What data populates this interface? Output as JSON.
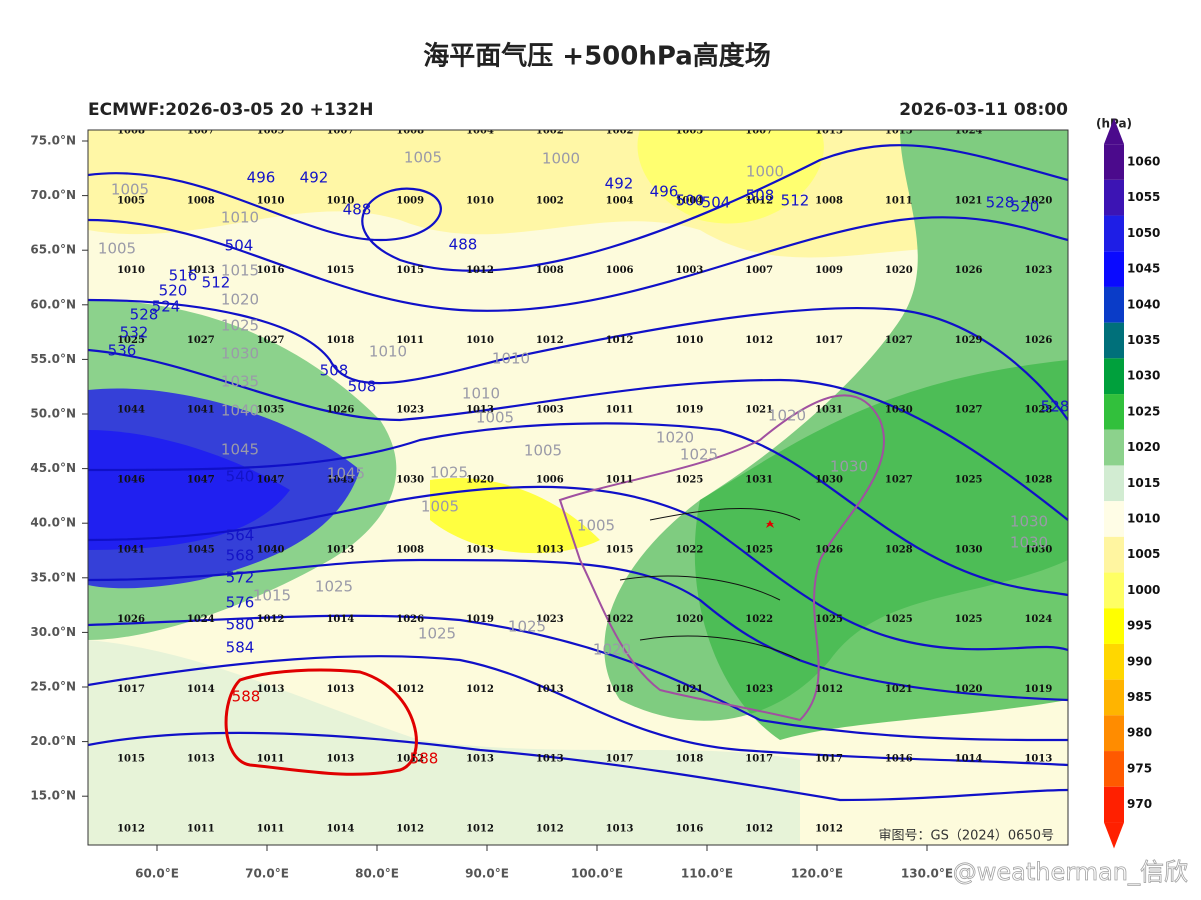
{
  "header": {
    "title": "海平面气压 +500hPa高度场",
    "left": "ECMWF:2026-03-05 20 +132H",
    "right": "2026-03-11 08:00"
  },
  "axes": {
    "lon_labels": [
      "60.0°E",
      "70.0°E",
      "80.0°E",
      "90.0°E",
      "100.0°E",
      "110.0°E",
      "120.0°E",
      "130.0°E"
    ],
    "lat_labels": [
      "75.0°N",
      "70.0°N",
      "65.0°N",
      "60.0°N",
      "55.0°N",
      "50.0°N",
      "45.0°N",
      "40.0°N",
      "35.0°N",
      "30.0°N",
      "25.0°N",
      "20.0°N",
      "15.0°N"
    ]
  },
  "colorbar": {
    "unit": "(hPa)",
    "labels": [
      "1060",
      "1055",
      "1050",
      "1045",
      "1040",
      "1035",
      "1030",
      "1025",
      "1020",
      "1015",
      "1010",
      "1005",
      "1000",
      "995",
      "990",
      "985",
      "980",
      "975",
      "970"
    ],
    "colors": [
      "#4b0a8c",
      "#3c14b4",
      "#1e1ee6",
      "#0a0aff",
      "#0a3cc8",
      "#00707a",
      "#00a03c",
      "#32c03c",
      "#8cd28c",
      "#d2ecd2",
      "#fffde6",
      "#fff5a0",
      "#ffff64",
      "#ffff00",
      "#ffd700",
      "#ffb400",
      "#ff8c00",
      "#ff5a00",
      "#ff2000"
    ]
  },
  "stations": {
    "rows": [
      [
        "1008",
        "1007",
        "1009",
        "1007",
        "1008",
        "1004",
        "1002",
        "1002",
        "1005",
        "1007",
        "1013",
        "1015",
        "1024"
      ],
      [
        "1005",
        "1008",
        "1010",
        "1010",
        "1009",
        "1010",
        "1002",
        "1004",
        "1004",
        "1012",
        "1008",
        "1011",
        "1021",
        "1020"
      ],
      [
        "1010",
        "1013",
        "1016",
        "1015",
        "1015",
        "1012",
        "1008",
        "1006",
        "1003",
        "1007",
        "1009",
        "1020",
        "1026",
        "1023"
      ],
      [
        "1025",
        "1027",
        "1027",
        "1018",
        "1011",
        "1010",
        "1012",
        "1012",
        "1010",
        "1012",
        "1017",
        "1027",
        "1029",
        "1026"
      ],
      [
        "1044",
        "1041",
        "1035",
        "1026",
        "1023",
        "1013",
        "1003",
        "1011",
        "1019",
        "1021",
        "1031",
        "1030",
        "1027",
        "1028"
      ],
      [
        "1046",
        "1047",
        "1047",
        "1045",
        "1030",
        "1020",
        "1006",
        "1011",
        "1025",
        "1031",
        "1030",
        "1027",
        "1025",
        "1028"
      ],
      [
        "1041",
        "1045",
        "1040",
        "1013",
        "1008",
        "1013",
        "1013",
        "1015",
        "1022",
        "1025",
        "1026",
        "1028",
        "1030",
        "1030"
      ],
      [
        "1026",
        "1024",
        "1012",
        "1014",
        "1026",
        "1019",
        "1023",
        "1022",
        "1020",
        "1022",
        "1025",
        "1025",
        "1025",
        "1024"
      ],
      [
        "1017",
        "1014",
        "1013",
        "1013",
        "1012",
        "1012",
        "1013",
        "1018",
        "1021",
        "1023",
        "1012",
        "1021",
        "1020",
        "1019"
      ],
      [
        "1015",
        "1013",
        "1011",
        "1013",
        "1012",
        "1013",
        "1013",
        "1017",
        "1018",
        "1017",
        "1017",
        "1016",
        "1014",
        "1013"
      ],
      [
        "1012",
        "1011",
        "1011",
        "1014",
        "1012",
        "1012",
        "1012",
        "1013",
        "1016",
        "1012",
        "1012"
      ]
    ]
  },
  "contours": {
    "height_labels": [
      "496",
      "492",
      "488",
      "488",
      "492",
      "496",
      "500",
      "504",
      "508",
      "512",
      "520",
      "528",
      "504",
      "516",
      "520",
      "512",
      "524",
      "528",
      "532",
      "536",
      "508",
      "508",
      "540",
      "564",
      "568",
      "572",
      "576",
      "580",
      "584",
      "528"
    ],
    "isobar_labels": [
      "1005",
      "1000",
      "1000",
      "1005",
      "1005",
      "1010",
      "1015",
      "1020",
      "1025",
      "1030",
      "1035",
      "1040",
      "1045",
      "1045",
      "1010",
      "1010",
      "1010",
      "1005",
      "1005",
      "1020",
      "1025",
      "1030",
      "1020",
      "1030",
      "1030",
      "1025",
      "1030",
      "1025",
      "1025",
      "1020",
      "1005",
      "1025",
      "1015",
      "1005"
    ],
    "ridge_labels": [
      "588",
      "588"
    ]
  },
  "footer": {
    "approval": "审图号：GS（2024）0650号",
    "watermark": "@weatherman_信欣"
  }
}
